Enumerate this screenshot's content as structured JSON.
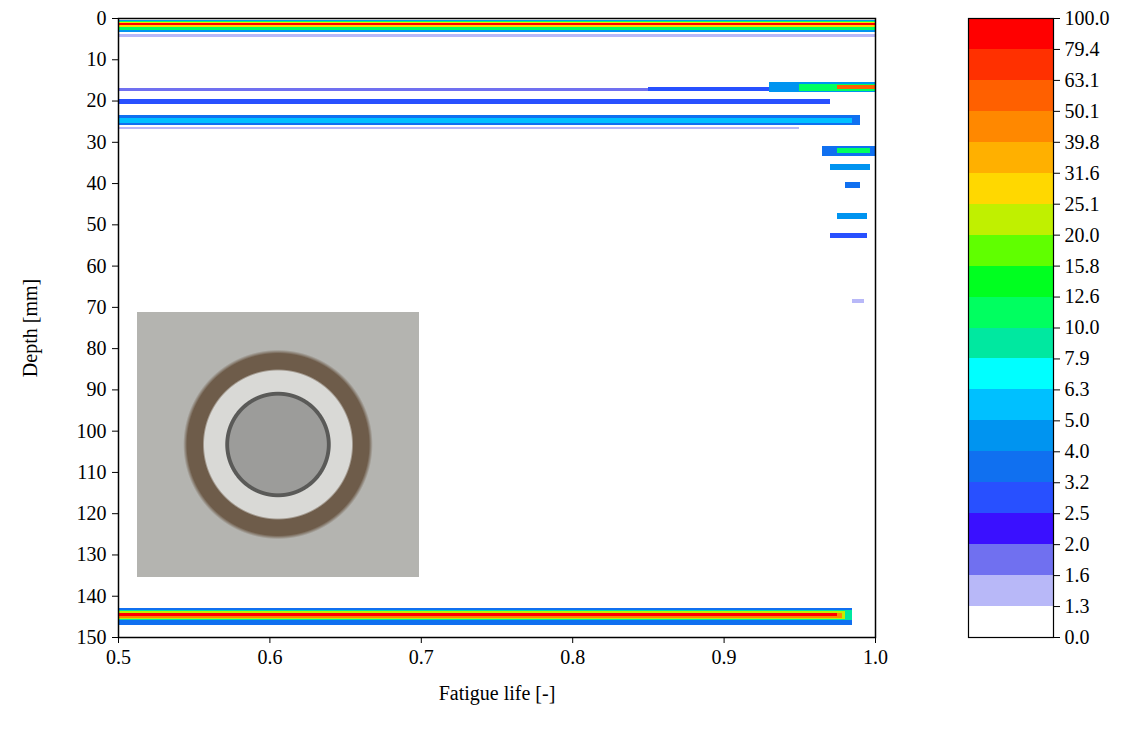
{
  "chart_data": {
    "type": "heatmap",
    "x_label": "Fatigue life [-]",
    "y_label": "Depth [mm]",
    "xlim": [
      0.5,
      1.0
    ],
    "xticks": [
      0.5,
      0.6,
      0.7,
      0.8,
      0.9,
      {
        "value": 1.0,
        "label": "1.0"
      }
    ],
    "ylim": [
      150,
      0
    ],
    "yticks": [
      0,
      10,
      20,
      30,
      40,
      50,
      60,
      70,
      80,
      90,
      100,
      110,
      120,
      130,
      140,
      150
    ],
    "cells": [
      {
        "x1": 0.5,
        "x2": 1.0,
        "y1": 0.5,
        "y2": 3.3,
        "value": 4.5
      },
      {
        "x1": 0.5,
        "x2": 1.0,
        "y1": 0.8,
        "y2": 2.8,
        "value": 12.0
      },
      {
        "x1": 0.5,
        "x2": 1.0,
        "y1": 1.0,
        "y2": 2.3,
        "value": 30.0
      },
      {
        "x1": 0.5,
        "x2": 1.0,
        "y1": 1.1,
        "y2": 1.8,
        "value": 80.0
      },
      {
        "x1": 0.5,
        "x2": 1.0,
        "y1": 3.9,
        "y2": 4.5,
        "value": 1.5
      },
      {
        "x1": 0.5,
        "x2": 0.85,
        "y1": 17.0,
        "y2": 17.8,
        "value": 1.8
      },
      {
        "x1": 0.85,
        "x2": 0.93,
        "y1": 16.8,
        "y2": 17.8,
        "value": 2.8
      },
      {
        "x1": 0.93,
        "x2": 1.0,
        "y1": 15.5,
        "y2": 18.0,
        "value": 4.5
      },
      {
        "x1": 0.95,
        "x2": 1.0,
        "y1": 15.9,
        "y2": 17.6,
        "value": 12.0
      },
      {
        "x1": 0.975,
        "x2": 1.0,
        "y1": 16.2,
        "y2": 17.2,
        "value": 60.0
      },
      {
        "x1": 0.5,
        "x2": 0.97,
        "y1": 19.7,
        "y2": 20.9,
        "value": 2.8
      },
      {
        "x1": 0.5,
        "x2": 0.99,
        "y1": 23.6,
        "y2": 26.0,
        "value": 3.5
      },
      {
        "x1": 0.5,
        "x2": 0.985,
        "y1": 24.2,
        "y2": 25.4,
        "value": 5.0
      },
      {
        "x1": 0.5,
        "x2": 0.95,
        "y1": 26.3,
        "y2": 26.8,
        "value": 1.5
      },
      {
        "x1": 0.965,
        "x2": 1.0,
        "y1": 31.0,
        "y2": 33.5,
        "value": 3.5
      },
      {
        "x1": 0.975,
        "x2": 0.997,
        "y1": 31.6,
        "y2": 32.8,
        "value": 10.0
      },
      {
        "x1": 0.97,
        "x2": 0.997,
        "y1": 35.3,
        "y2": 36.8,
        "value": 4.0
      },
      {
        "x1": 0.98,
        "x2": 0.99,
        "y1": 39.8,
        "y2": 41.3,
        "value": 3.5
      },
      {
        "x1": 0.975,
        "x2": 0.995,
        "y1": 47.3,
        "y2": 48.6,
        "value": 4.0
      },
      {
        "x1": 0.97,
        "x2": 0.995,
        "y1": 52.0,
        "y2": 53.2,
        "value": 3.0
      },
      {
        "x1": 0.985,
        "x2": 0.993,
        "y1": 68.0,
        "y2": 69.0,
        "value": 1.5
      },
      {
        "x1": 0.5,
        "x2": 0.985,
        "y1": 143.0,
        "y2": 147.0,
        "value": 3.5
      },
      {
        "x1": 0.5,
        "x2": 0.985,
        "y1": 143.4,
        "y2": 146.0,
        "value": 8.0
      },
      {
        "x1": 0.5,
        "x2": 0.98,
        "y1": 143.8,
        "y2": 145.6,
        "value": 20.0
      },
      {
        "x1": 0.5,
        "x2": 0.978,
        "y1": 144.1,
        "y2": 145.3,
        "value": 45.0
      },
      {
        "x1": 0.5,
        "x2": 0.975,
        "y1": 144.3,
        "y2": 145.0,
        "value": 80.0
      }
    ],
    "color_bar": {
      "ticks": [
        {
          "value": 0,
          "label": "0.0"
        },
        {
          "value": 1.3,
          "label": "1.3"
        },
        {
          "value": 1.6,
          "label": "1.6"
        },
        {
          "value": 2.0,
          "label": "2.0"
        },
        {
          "value": 2.5,
          "label": "2.5"
        },
        {
          "value": 3.2,
          "label": "3.2"
        },
        {
          "value": 4.0,
          "label": "4.0"
        },
        {
          "value": 5.0,
          "label": "5.0"
        },
        {
          "value": 6.3,
          "label": "6.3"
        },
        {
          "value": 7.9,
          "label": "7.9"
        },
        {
          "value": 10.0,
          "label": "10.0"
        },
        {
          "value": 12.6,
          "label": "12.6"
        },
        {
          "value": 15.8,
          "label": "15.8"
        },
        {
          "value": 20.0,
          "label": "20.0"
        },
        {
          "value": 25.1,
          "label": "25.1"
        },
        {
          "value": 31.6,
          "label": "31.6"
        },
        {
          "value": 39.8,
          "label": "39.8"
        },
        {
          "value": 50.1,
          "label": "50.1"
        },
        {
          "value": 63.1,
          "label": "63.1"
        },
        {
          "value": 79.4,
          "label": "79.4"
        },
        {
          "value": 100.0,
          "label": "100.0"
        }
      ],
      "colors": [
        "#ffffff",
        "#b8b8f8",
        "#7070f0",
        "#3a10ff",
        "#2850ff",
        "#1070f0",
        "#0094f0",
        "#00c0ff",
        "#00ffff",
        "#00e8a0",
        "#00ff60",
        "#00ff20",
        "#60ff00",
        "#c0f000",
        "#ffd800",
        "#ffb000",
        "#ff8800",
        "#ff6000",
        "#ff3000",
        "#ff0000"
      ]
    }
  }
}
